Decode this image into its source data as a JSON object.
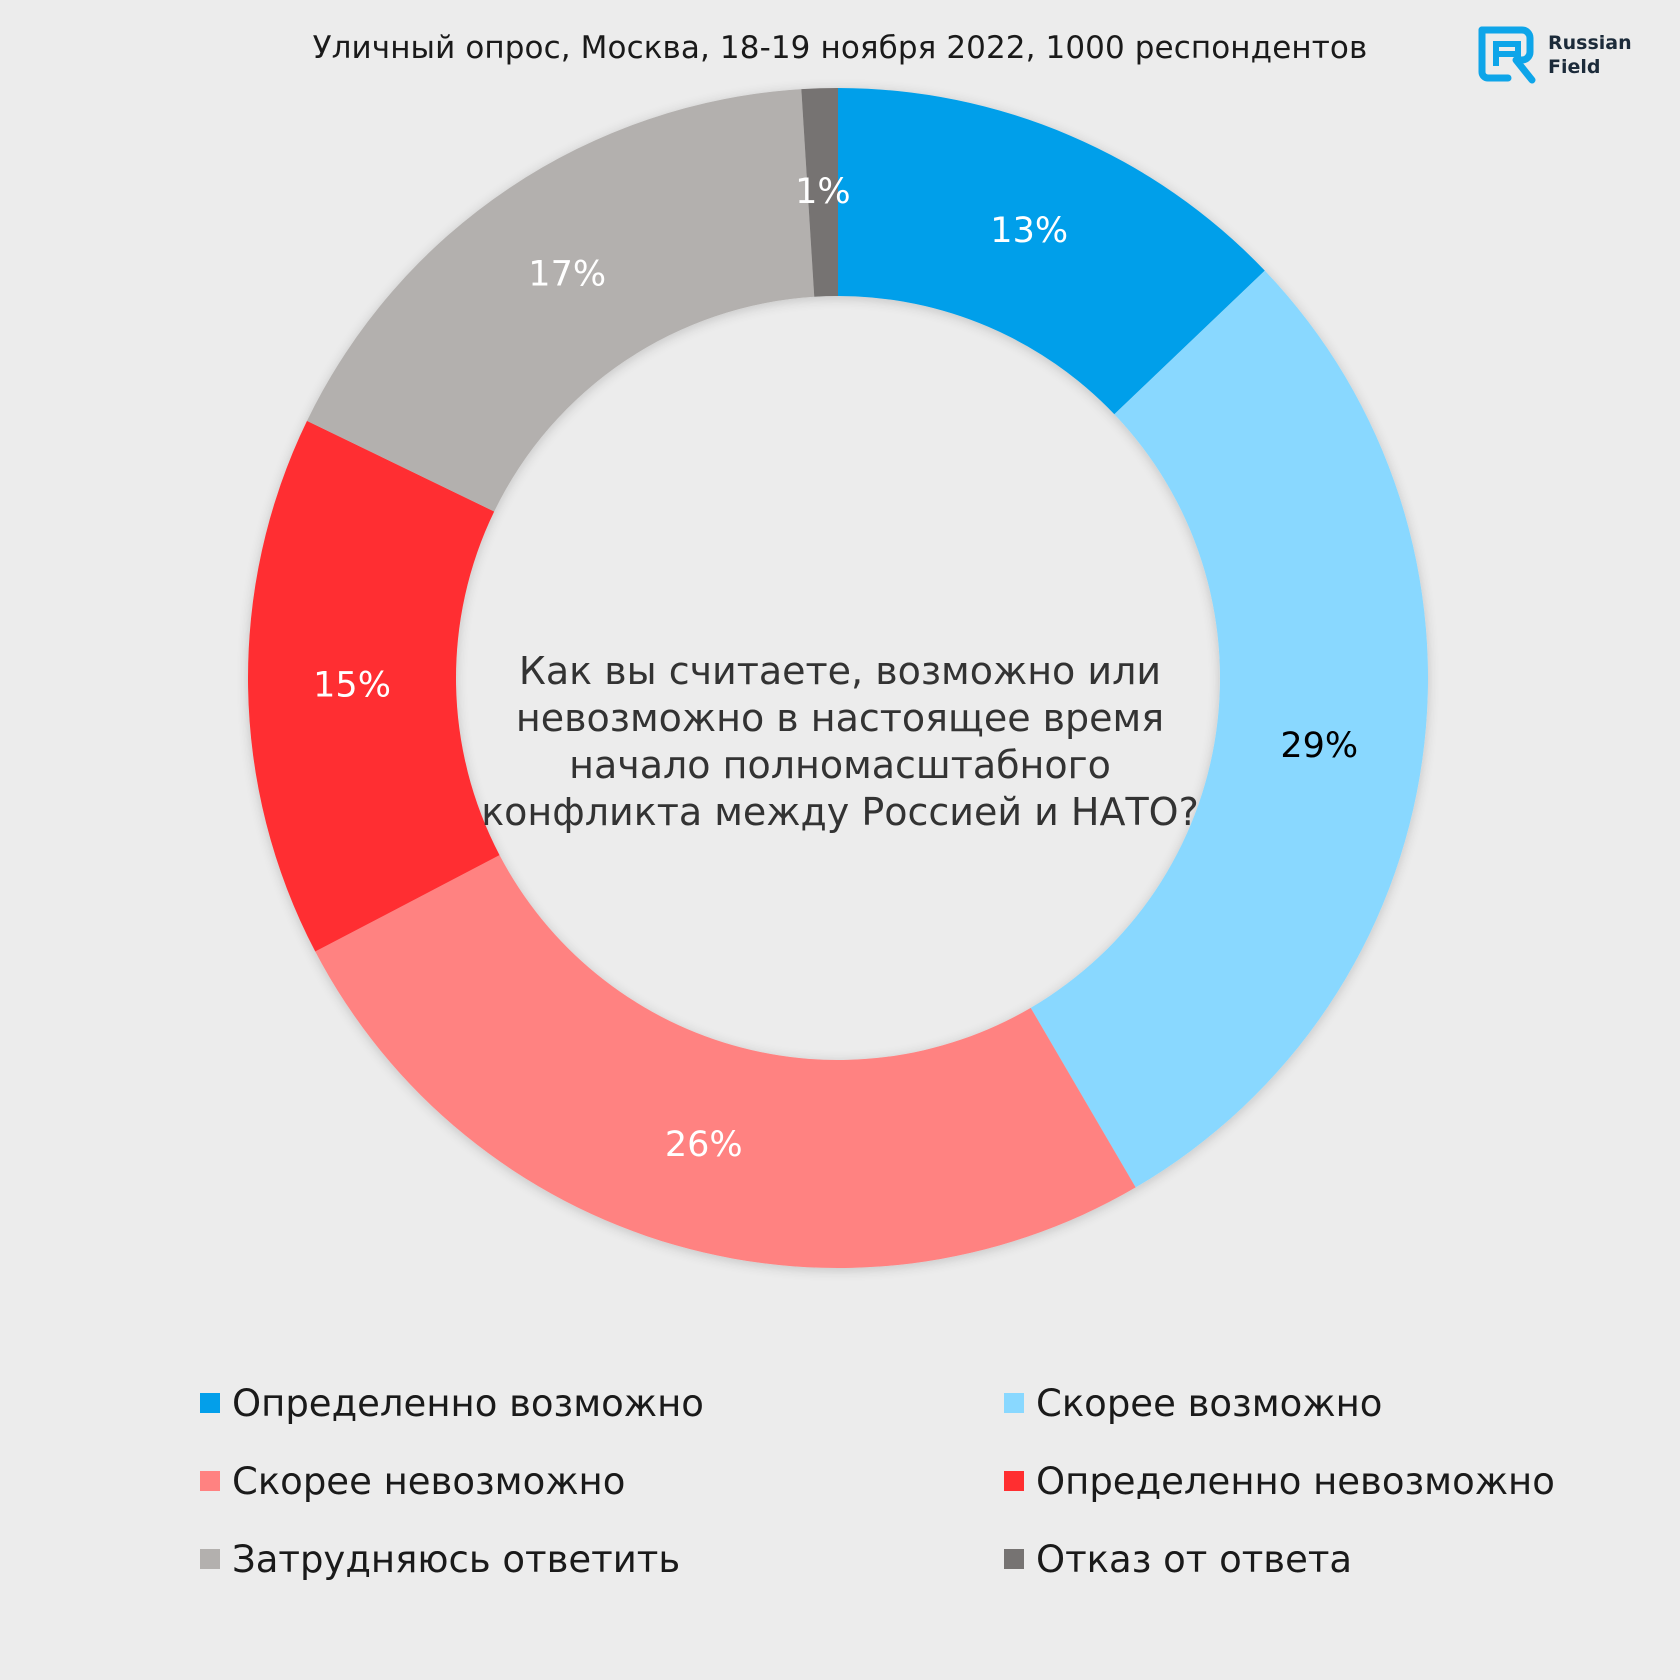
{
  "header": {
    "subtitle": "Уличный опрос, Москва, 18-19 ноября 2022, 1000 респондентов"
  },
  "logo": {
    "line1": "Russian",
    "line2": "Field",
    "icon": "russian-field-logo-icon",
    "color": "#0ea5e9"
  },
  "chart_data": {
    "type": "pie",
    "variant": "donut",
    "title": "Как вы считаете, возможно или невозможно в настоящее время начало полномасштабного конфликта между Россией и НАТО?",
    "start": "top",
    "direction": "clockwise",
    "slices": [
      {
        "label": "Определенно возможно",
        "value": 13,
        "value_label": "13%",
        "color": "#039fea",
        "label_color": "#ffffff"
      },
      {
        "label": "Скорее возможно",
        "value": 29,
        "value_label": "29%",
        "color": "#89d8ff",
        "label_color": "#000000"
      },
      {
        "label": "Скорее невозможно",
        "value": 26,
        "value_label": "26%",
        "color": "#ff8281",
        "label_color": "#ffffff"
      },
      {
        "label": "Определенно невозможно",
        "value": 15,
        "value_label": "15%",
        "color": "#ff2e30",
        "label_color": "#ffffff"
      },
      {
        "label": "Затрудняюсь ответить",
        "value": 17,
        "value_label": "17%",
        "color": "#b3b0ae",
        "label_color": "#ffffff"
      },
      {
        "label": "Отказ от ответа",
        "value": 1,
        "value_label": "1%",
        "color": "#767372",
        "label_color": "#ffffff"
      }
    ],
    "legend_order": [
      0,
      1,
      2,
      3,
      4,
      5
    ]
  }
}
